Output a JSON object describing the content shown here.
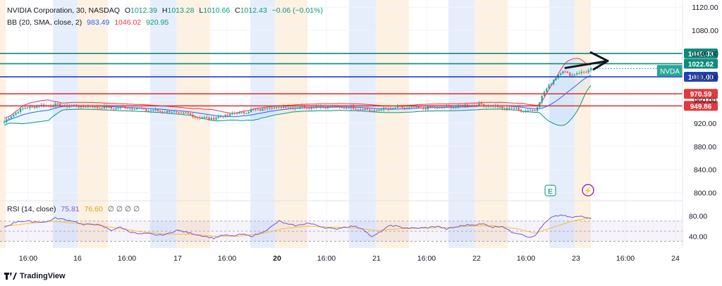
{
  "colors": {
    "up": "#26a69a",
    "down": "#ef5350",
    "bb_upper": "#f23645",
    "bb_basis": "#2962ff",
    "bb_lower": "#089981",
    "rsi": "#7e57c2",
    "rsi_ma": "#f5c12e",
    "teal_line": "#0f8a7a",
    "blue_line": "#2340b8",
    "red_line": "#e03a3e",
    "band_blue": "#e7eefb",
    "band_orange": "#fdf1e1",
    "grid": "#f0f3fa"
  },
  "legend": {
    "symbol": "NVIDIA Corporation, 30, NASDAQ",
    "o_label": "O",
    "o": "1012.39",
    "h_label": "H",
    "h": "1013.28",
    "l_label": "L",
    "l": "1010.66",
    "c_label": "C",
    "c": "1012.43",
    "change": "−0.06 (−0.01%)",
    "bb_label": "BB (20, SMA, close, 2)",
    "bb_basis": "983.49",
    "bb_upper": "1046.02",
    "bb_lower": "920.95",
    "rsi_label": "RSI (14, close)",
    "rsi_value": "75.81",
    "rsi_ma": "76.60",
    "rsi_zeros": "∅ ∅ ∅ ∅"
  },
  "footer": {
    "brand": "TradingView"
  },
  "chart_data": {
    "type": "candlestick",
    "price_axis": {
      "min": 785,
      "max": 1130,
      "ticks": [
        1120,
        1080,
        1040,
        1000,
        960,
        920,
        880,
        840,
        800
      ]
    },
    "time_labels": [
      "16:00",
      "16",
      "16:00",
      "17",
      "16:00",
      "20",
      "16:00",
      "21",
      "16:00",
      "22",
      "16:00",
      "23",
      "16:00",
      "24"
    ],
    "horizontal_levels": [
      {
        "price": 1040.33,
        "label": "1040.33",
        "color": "#0f8a7a"
      },
      {
        "price": 1022.62,
        "label": "1022.62",
        "color": "#0f8a7a"
      },
      {
        "price": 1000.0,
        "label": "1000.00",
        "color": "#2340b8"
      },
      {
        "price": 970.59,
        "label": "970.59",
        "color": "#e03a3e"
      },
      {
        "price": 949.86,
        "label": "949.86",
        "color": "#e03a3e"
      }
    ],
    "symbol_tag": {
      "label": "NVDA",
      "price": 1010.6
    },
    "event_badges": [
      {
        "label": "E"
      },
      {
        "label": "⚡"
      }
    ],
    "close_anchors": [
      [
        0,
        922
      ],
      [
        6,
        942
      ],
      [
        12,
        949
      ],
      [
        20,
        951
      ],
      [
        28,
        950
      ],
      [
        34,
        949
      ],
      [
        40,
        948
      ],
      [
        46,
        946
      ],
      [
        54,
        947
      ],
      [
        62,
        942
      ],
      [
        70,
        940
      ],
      [
        78,
        936
      ],
      [
        84,
        930
      ],
      [
        88,
        928
      ],
      [
        92,
        930
      ],
      [
        98,
        936
      ],
      [
        106,
        941
      ],
      [
        114,
        947
      ],
      [
        122,
        948
      ],
      [
        130,
        948
      ],
      [
        138,
        949
      ],
      [
        146,
        947
      ],
      [
        152,
        946
      ],
      [
        158,
        941
      ],
      [
        164,
        945
      ],
      [
        170,
        947
      ],
      [
        178,
        946
      ],
      [
        186,
        947
      ],
      [
        194,
        949
      ],
      [
        202,
        952
      ],
      [
        208,
        951
      ],
      [
        214,
        946
      ],
      [
        220,
        945
      ],
      [
        224,
        941
      ],
      [
        228,
        943
      ],
      [
        232,
        973
      ],
      [
        236,
        996
      ],
      [
        240,
        1010
      ],
      [
        244,
        1003
      ],
      [
        248,
        1008
      ],
      [
        252,
        1012
      ]
    ],
    "candle_count": 253,
    "rsi": {
      "axis": {
        "min": 25,
        "max": 95,
        "ticks": [
          80,
          40
        ]
      },
      "bands": [
        70,
        50,
        30
      ],
      "anchors": [
        [
          0,
          58
        ],
        [
          6,
          70
        ],
        [
          12,
          69
        ],
        [
          18,
          68
        ],
        [
          22,
          76
        ],
        [
          26,
          73
        ],
        [
          30,
          70
        ],
        [
          34,
          62
        ],
        [
          38,
          65
        ],
        [
          42,
          60
        ],
        [
          46,
          52
        ],
        [
          50,
          58
        ],
        [
          54,
          49
        ],
        [
          58,
          44
        ],
        [
          62,
          45
        ],
        [
          66,
          42
        ],
        [
          70,
          44
        ],
        [
          74,
          52
        ],
        [
          78,
          48
        ],
        [
          82,
          44
        ],
        [
          86,
          40
        ],
        [
          90,
          36
        ],
        [
          94,
          42
        ],
        [
          98,
          40
        ],
        [
          102,
          44
        ],
        [
          106,
          40
        ],
        [
          110,
          46
        ],
        [
          114,
          56
        ],
        [
          118,
          70
        ],
        [
          122,
          63
        ],
        [
          126,
          61
        ],
        [
          130,
          66
        ],
        [
          134,
          62
        ],
        [
          138,
          57
        ],
        [
          142,
          54
        ],
        [
          146,
          58
        ],
        [
          150,
          60
        ],
        [
          154,
          55
        ],
        [
          158,
          38
        ],
        [
          162,
          50
        ],
        [
          166,
          62
        ],
        [
          170,
          58
        ],
        [
          174,
          56
        ],
        [
          178,
          56
        ],
        [
          182,
          57
        ],
        [
          186,
          60
        ],
        [
          190,
          54
        ],
        [
          194,
          58
        ],
        [
          198,
          62
        ],
        [
          202,
          63
        ],
        [
          206,
          64
        ],
        [
          210,
          58
        ],
        [
          214,
          60
        ],
        [
          218,
          48
        ],
        [
          222,
          45
        ],
        [
          226,
          37
        ],
        [
          228,
          41
        ],
        [
          232,
          65
        ],
        [
          236,
          80
        ],
        [
          240,
          81
        ],
        [
          244,
          77
        ],
        [
          248,
          80
        ],
        [
          252,
          76
        ]
      ],
      "ma_anchors": [
        [
          0,
          60
        ],
        [
          10,
          65
        ],
        [
          20,
          70
        ],
        [
          30,
          66
        ],
        [
          40,
          62
        ],
        [
          50,
          55
        ],
        [
          60,
          48
        ],
        [
          70,
          44
        ],
        [
          80,
          44
        ],
        [
          90,
          40
        ],
        [
          100,
          40
        ],
        [
          110,
          44
        ],
        [
          120,
          55
        ],
        [
          130,
          60
        ],
        [
          140,
          58
        ],
        [
          150,
          57
        ],
        [
          160,
          51
        ],
        [
          170,
          55
        ],
        [
          180,
          56
        ],
        [
          190,
          57
        ],
        [
          200,
          60
        ],
        [
          210,
          61
        ],
        [
          220,
          55
        ],
        [
          228,
          46
        ],
        [
          236,
          58
        ],
        [
          244,
          70
        ],
        [
          252,
          77
        ]
      ]
    }
  }
}
